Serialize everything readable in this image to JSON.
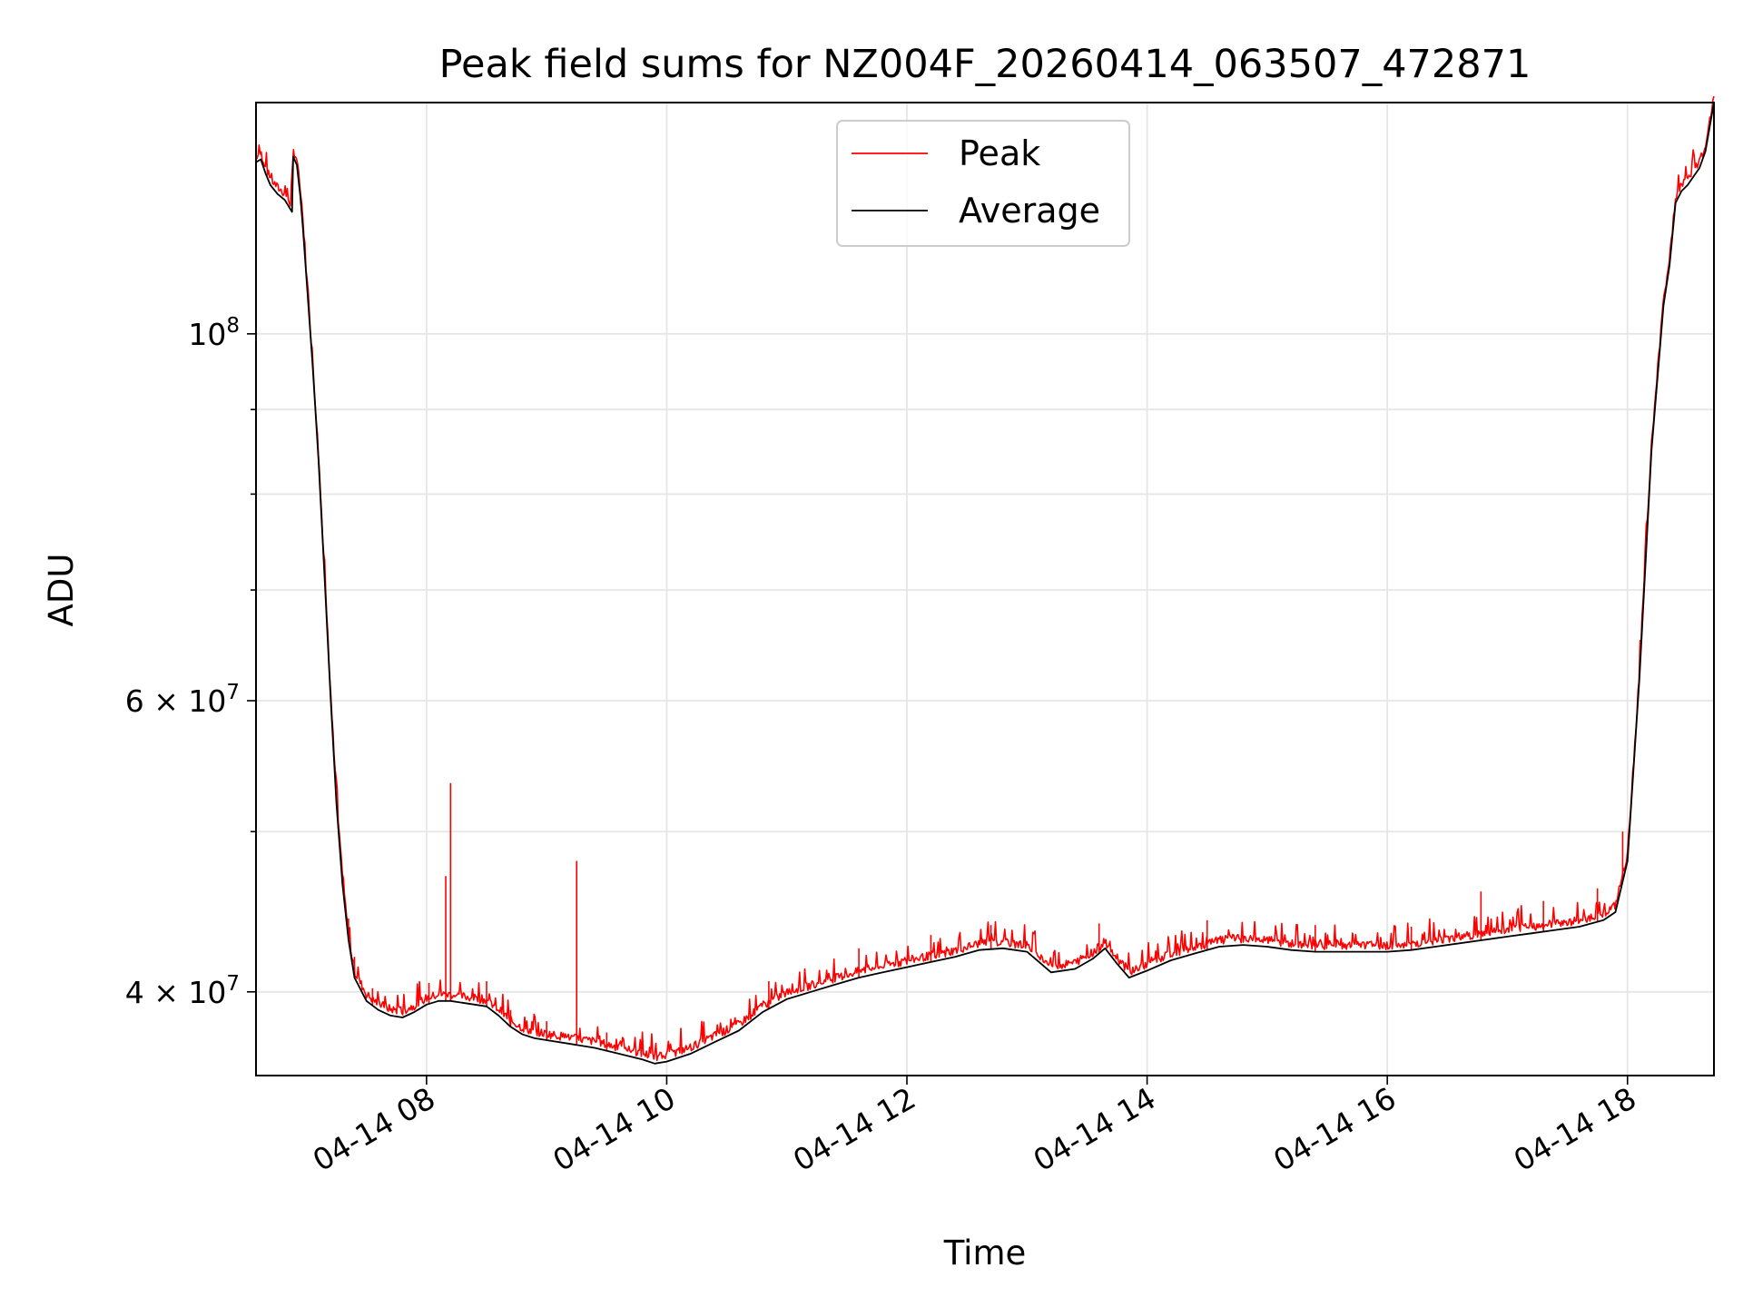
{
  "chart_data": {
    "type": "line",
    "title": "Peak field sums for NZ004F_20260414_063507_472871",
    "xlabel": "Time",
    "ylabel": "ADU",
    "x_unit": "hours since 04-14 00:00",
    "xlim": [
      6.58,
      18.72
    ],
    "ylim": [
      35600000,
      138000000
    ],
    "yscale": "log",
    "grid": true,
    "legend_position": "upper center",
    "x_ticks": [
      {
        "value": 8,
        "label": "04-14 08"
      },
      {
        "value": 10,
        "label": "04-14 10"
      },
      {
        "value": 12,
        "label": "04-14 12"
      },
      {
        "value": 14,
        "label": "04-14 14"
      },
      {
        "value": 16,
        "label": "04-14 16"
      },
      {
        "value": 18,
        "label": "04-14 18"
      }
    ],
    "y_major_ticks": [
      {
        "value": 40000000,
        "mantissa": "4",
        "exponent": "7"
      },
      {
        "value": 60000000,
        "mantissa": "6",
        "exponent": "7"
      },
      {
        "value": 100000000,
        "mantissa": "",
        "exponent": "8"
      }
    ],
    "y_minor_ticks": [
      50000000,
      70000000,
      80000000,
      90000000
    ],
    "times_symbol": "×",
    "y_tick_base": "10",
    "series": [
      {
        "name": "Average",
        "color": "#000000",
        "x": [
          6.58,
          6.62,
          6.66,
          6.7,
          6.76,
          6.82,
          6.88,
          6.89,
          6.92,
          6.95,
          6.97,
          7.0,
          7.05,
          7.1,
          7.15,
          7.2,
          7.25,
          7.3,
          7.35,
          7.4,
          7.5,
          7.6,
          7.7,
          7.8,
          7.9,
          8.0,
          8.1,
          8.2,
          8.3,
          8.4,
          8.5,
          8.6,
          8.7,
          8.8,
          8.9,
          9.0,
          9.2,
          9.4,
          9.6,
          9.8,
          9.9,
          10.0,
          10.2,
          10.4,
          10.6,
          10.8,
          11.0,
          11.2,
          11.4,
          11.6,
          11.8,
          12.0,
          12.2,
          12.4,
          12.6,
          12.8,
          13.0,
          13.2,
          13.4,
          13.55,
          13.65,
          13.75,
          13.85,
          14.0,
          14.2,
          14.4,
          14.6,
          14.8,
          15.0,
          15.2,
          15.4,
          15.6,
          15.8,
          16.0,
          16.2,
          16.4,
          16.6,
          16.8,
          17.0,
          17.2,
          17.4,
          17.6,
          17.8,
          17.9,
          18.0,
          18.1,
          18.2,
          18.3,
          18.35,
          18.4,
          18.45,
          18.5,
          18.55,
          18.6,
          18.65,
          18.72
        ],
        "y": [
          127000000,
          127500000,
          125000000,
          123000000,
          121500000,
          120500000,
          118500000,
          128000000,
          126500000,
          121000000,
          116000000,
          108000000,
          96000000,
          84000000,
          71500000,
          60500000,
          52000000,
          46500000,
          43000000,
          40800000,
          39500000,
          39000000,
          38700000,
          38600000,
          38900000,
          39300000,
          39500000,
          39500000,
          39400000,
          39300000,
          39200000,
          38700000,
          38100000,
          37700000,
          37500000,
          37400000,
          37200000,
          37000000,
          36700000,
          36400000,
          36200000,
          36300000,
          36700000,
          37300000,
          37900000,
          38900000,
          39600000,
          40000000,
          40400000,
          40800000,
          41100000,
          41400000,
          41700000,
          42000000,
          42400000,
          42500000,
          42300000,
          41100000,
          41300000,
          41900000,
          42500000,
          41600000,
          40800000,
          41200000,
          41800000,
          42200000,
          42600000,
          42700000,
          42600000,
          42400000,
          42300000,
          42300000,
          42300000,
          42300000,
          42400000,
          42600000,
          42800000,
          43000000,
          43200000,
          43400000,
          43600000,
          43800000,
          44200000,
          44700000,
          48000000,
          62000000,
          85000000,
          104000000,
          110000000,
          120000000,
          122000000,
          123000000,
          124500000,
          126000000,
          129000000,
          138000000
        ]
      },
      {
        "name": "Peak",
        "color": "#ff0000",
        "spikes": [
          {
            "x": 7.35,
            "y": 44300000
          },
          {
            "x": 7.4,
            "y": 42000000
          },
          {
            "x": 7.55,
            "y": 40200000
          },
          {
            "x": 8.02,
            "y": 40500000
          },
          {
            "x": 8.16,
            "y": 47000000
          },
          {
            "x": 8.2,
            "y": 53500000
          },
          {
            "x": 8.5,
            "y": 40600000
          },
          {
            "x": 8.7,
            "y": 39000000
          },
          {
            "x": 9.0,
            "y": 38400000
          },
          {
            "x": 9.25,
            "y": 48000000
          },
          {
            "x": 9.5,
            "y": 37800000
          },
          {
            "x": 10.85,
            "y": 40600000
          },
          {
            "x": 11.6,
            "y": 42500000
          },
          {
            "x": 12.2,
            "y": 43300000
          },
          {
            "x": 12.7,
            "y": 43900000
          },
          {
            "x": 13.6,
            "y": 44000000
          },
          {
            "x": 14.5,
            "y": 44200000
          },
          {
            "x": 15.4,
            "y": 43900000
          },
          {
            "x": 16.2,
            "y": 43800000
          },
          {
            "x": 16.78,
            "y": 46000000
          },
          {
            "x": 17.3,
            "y": 45400000
          },
          {
            "x": 17.75,
            "y": 46200000
          },
          {
            "x": 17.96,
            "y": 50000000
          }
        ]
      }
    ]
  }
}
